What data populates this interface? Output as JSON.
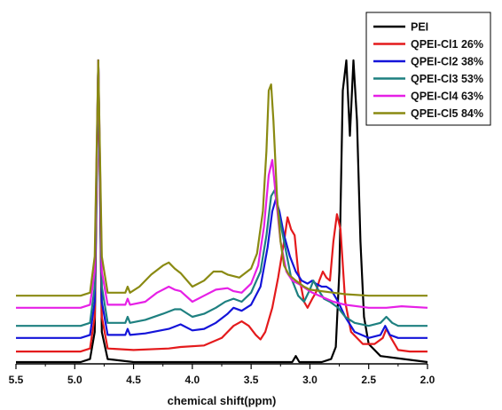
{
  "chart_data": {
    "type": "line",
    "title": "",
    "xlabel": "chemical shift(ppm)",
    "ylabel": "",
    "xlim": [
      5.5,
      2.0
    ],
    "x_reversed": true,
    "ylim": [
      0,
      1
    ],
    "x_ticks": [
      5.5,
      5.0,
      4.5,
      4.0,
      3.5,
      3.0,
      2.5,
      2.0
    ],
    "x_tick_labels": [
      "5.5",
      "5.0",
      "4.5",
      "4.0",
      "3.5",
      "3.0",
      "2.5",
      "2.0"
    ],
    "grid": false,
    "legend_position": "top-right",
    "legend": [
      "PEI",
      "QPEI-Cl1 26%",
      "QPEI-Cl2 38%",
      "QPEI-Cl3 53%",
      "QPEI-Cl4 63%",
      "QPEI-Cl5 84%"
    ],
    "series": [
      {
        "name": "PEI",
        "color": "#000000",
        "points": [
          [
            5.5,
            0.0
          ],
          [
            4.95,
            0.0
          ],
          [
            4.87,
            0.01
          ],
          [
            4.83,
            0.1
          ],
          [
            4.8,
            1.0
          ],
          [
            4.77,
            0.1
          ],
          [
            4.72,
            0.01
          ],
          [
            4.5,
            0.0
          ],
          [
            3.6,
            0.0
          ],
          [
            3.15,
            0.0
          ],
          [
            3.12,
            0.02
          ],
          [
            3.09,
            0.0
          ],
          [
            2.9,
            0.0
          ],
          [
            2.82,
            0.01
          ],
          [
            2.78,
            0.05
          ],
          [
            2.75,
            0.3
          ],
          [
            2.72,
            0.9
          ],
          [
            2.69,
            1.0
          ],
          [
            2.66,
            0.75
          ],
          [
            2.63,
            1.0
          ],
          [
            2.6,
            0.8
          ],
          [
            2.57,
            0.4
          ],
          [
            2.54,
            0.15
          ],
          [
            2.5,
            0.06
          ],
          [
            2.4,
            0.02
          ],
          [
            2.2,
            0.01
          ],
          [
            2.0,
            0.0
          ]
        ]
      },
      {
        "name": "QPEI-Cl1 26%",
        "color": "#e41a1c",
        "points": [
          [
            5.5,
            0.035
          ],
          [
            4.95,
            0.035
          ],
          [
            4.87,
            0.045
          ],
          [
            4.83,
            0.15
          ],
          [
            4.8,
            1.0
          ],
          [
            4.77,
            0.15
          ],
          [
            4.72,
            0.045
          ],
          [
            4.5,
            0.04
          ],
          [
            4.2,
            0.045
          ],
          [
            4.1,
            0.05
          ],
          [
            3.9,
            0.055
          ],
          [
            3.75,
            0.08
          ],
          [
            3.65,
            0.12
          ],
          [
            3.58,
            0.135
          ],
          [
            3.52,
            0.12
          ],
          [
            3.46,
            0.09
          ],
          [
            3.42,
            0.075
          ],
          [
            3.38,
            0.1
          ],
          [
            3.32,
            0.18
          ],
          [
            3.27,
            0.28
          ],
          [
            3.22,
            0.4
          ],
          [
            3.19,
            0.48
          ],
          [
            3.16,
            0.44
          ],
          [
            3.13,
            0.42
          ],
          [
            3.1,
            0.3
          ],
          [
            3.05,
            0.2
          ],
          [
            3.02,
            0.18
          ],
          [
            2.98,
            0.21
          ],
          [
            2.95,
            0.23
          ],
          [
            2.92,
            0.27
          ],
          [
            2.89,
            0.3
          ],
          [
            2.86,
            0.28
          ],
          [
            2.83,
            0.27
          ],
          [
            2.8,
            0.4
          ],
          [
            2.77,
            0.49
          ],
          [
            2.74,
            0.44
          ],
          [
            2.7,
            0.2
          ],
          [
            2.65,
            0.1
          ],
          [
            2.55,
            0.06
          ],
          [
            2.45,
            0.06
          ],
          [
            2.38,
            0.08
          ],
          [
            2.35,
            0.11
          ],
          [
            2.31,
            0.08
          ],
          [
            2.25,
            0.04
          ],
          [
            2.15,
            0.035
          ],
          [
            2.0,
            0.035
          ]
        ]
      },
      {
        "name": "QPEI-Cl2 38%",
        "color": "#1414d9",
        "points": [
          [
            5.5,
            0.08
          ],
          [
            4.95,
            0.08
          ],
          [
            4.87,
            0.09
          ],
          [
            4.83,
            0.2
          ],
          [
            4.8,
            1.0
          ],
          [
            4.77,
            0.2
          ],
          [
            4.72,
            0.09
          ],
          [
            4.57,
            0.09
          ],
          [
            4.55,
            0.11
          ],
          [
            4.53,
            0.09
          ],
          [
            4.4,
            0.095
          ],
          [
            4.2,
            0.11
          ],
          [
            4.1,
            0.125
          ],
          [
            4.0,
            0.105
          ],
          [
            3.9,
            0.11
          ],
          [
            3.8,
            0.13
          ],
          [
            3.7,
            0.16
          ],
          [
            3.65,
            0.18
          ],
          [
            3.58,
            0.17
          ],
          [
            3.5,
            0.19
          ],
          [
            3.42,
            0.25
          ],
          [
            3.36,
            0.38
          ],
          [
            3.32,
            0.5
          ],
          [
            3.29,
            0.54
          ],
          [
            3.26,
            0.5
          ],
          [
            3.22,
            0.42
          ],
          [
            3.17,
            0.35
          ],
          [
            3.12,
            0.3
          ],
          [
            3.07,
            0.27
          ],
          [
            3.02,
            0.26
          ],
          [
            2.98,
            0.27
          ],
          [
            2.95,
            0.26
          ],
          [
            2.9,
            0.25
          ],
          [
            2.86,
            0.25
          ],
          [
            2.82,
            0.24
          ],
          [
            2.76,
            0.2
          ],
          [
            2.7,
            0.15
          ],
          [
            2.62,
            0.1
          ],
          [
            2.5,
            0.08
          ],
          [
            2.4,
            0.09
          ],
          [
            2.36,
            0.12
          ],
          [
            2.32,
            0.09
          ],
          [
            2.25,
            0.08
          ],
          [
            2.0,
            0.08
          ]
        ]
      },
      {
        "name": "QPEI-Cl3 53%",
        "color": "#1e8080",
        "points": [
          [
            5.5,
            0.12
          ],
          [
            4.95,
            0.12
          ],
          [
            4.87,
            0.13
          ],
          [
            4.83,
            0.25
          ],
          [
            4.8,
            1.0
          ],
          [
            4.77,
            0.25
          ],
          [
            4.72,
            0.13
          ],
          [
            4.57,
            0.13
          ],
          [
            4.55,
            0.15
          ],
          [
            4.53,
            0.13
          ],
          [
            4.4,
            0.14
          ],
          [
            4.25,
            0.16
          ],
          [
            4.15,
            0.175
          ],
          [
            4.1,
            0.175
          ],
          [
            4.0,
            0.15
          ],
          [
            3.9,
            0.16
          ],
          [
            3.8,
            0.18
          ],
          [
            3.72,
            0.2
          ],
          [
            3.65,
            0.21
          ],
          [
            3.58,
            0.2
          ],
          [
            3.5,
            0.23
          ],
          [
            3.42,
            0.3
          ],
          [
            3.37,
            0.42
          ],
          [
            3.33,
            0.55
          ],
          [
            3.3,
            0.57
          ],
          [
            3.27,
            0.5
          ],
          [
            3.22,
            0.4
          ],
          [
            3.16,
            0.28
          ],
          [
            3.1,
            0.22
          ],
          [
            3.05,
            0.2
          ],
          [
            3.0,
            0.24
          ],
          [
            2.97,
            0.27
          ],
          [
            2.93,
            0.24
          ],
          [
            2.88,
            0.21
          ],
          [
            2.83,
            0.2
          ],
          [
            2.76,
            0.18
          ],
          [
            2.7,
            0.15
          ],
          [
            2.62,
            0.13
          ],
          [
            2.5,
            0.12
          ],
          [
            2.4,
            0.13
          ],
          [
            2.35,
            0.15
          ],
          [
            2.3,
            0.13
          ],
          [
            2.25,
            0.12
          ],
          [
            2.0,
            0.12
          ]
        ]
      },
      {
        "name": "QPEI-Cl4 63%",
        "color": "#e620e6",
        "points": [
          [
            5.5,
            0.18
          ],
          [
            4.95,
            0.18
          ],
          [
            4.87,
            0.19
          ],
          [
            4.83,
            0.3
          ],
          [
            4.8,
            1.0
          ],
          [
            4.77,
            0.3
          ],
          [
            4.72,
            0.19
          ],
          [
            4.57,
            0.19
          ],
          [
            4.55,
            0.21
          ],
          [
            4.53,
            0.19
          ],
          [
            4.4,
            0.2
          ],
          [
            4.3,
            0.23
          ],
          [
            4.2,
            0.25
          ],
          [
            4.15,
            0.24
          ],
          [
            4.1,
            0.235
          ],
          [
            4.0,
            0.2
          ],
          [
            3.9,
            0.22
          ],
          [
            3.8,
            0.24
          ],
          [
            3.7,
            0.245
          ],
          [
            3.65,
            0.235
          ],
          [
            3.58,
            0.23
          ],
          [
            3.5,
            0.26
          ],
          [
            3.44,
            0.32
          ],
          [
            3.39,
            0.45
          ],
          [
            3.35,
            0.62
          ],
          [
            3.32,
            0.67
          ],
          [
            3.29,
            0.55
          ],
          [
            3.25,
            0.4
          ],
          [
            3.2,
            0.3
          ],
          [
            3.15,
            0.27
          ],
          [
            3.1,
            0.26
          ],
          [
            3.06,
            0.25
          ],
          [
            3.02,
            0.24
          ],
          [
            2.98,
            0.23
          ],
          [
            2.92,
            0.22
          ],
          [
            2.86,
            0.21
          ],
          [
            2.8,
            0.2
          ],
          [
            2.7,
            0.19
          ],
          [
            2.5,
            0.18
          ],
          [
            2.35,
            0.18
          ],
          [
            2.22,
            0.185
          ],
          [
            2.0,
            0.18
          ]
        ]
      },
      {
        "name": "QPEI-Cl5 84%",
        "color": "#8a8a12",
        "points": [
          [
            5.5,
            0.22
          ],
          [
            4.95,
            0.22
          ],
          [
            4.87,
            0.23
          ],
          [
            4.83,
            0.35
          ],
          [
            4.8,
            1.0
          ],
          [
            4.77,
            0.35
          ],
          [
            4.72,
            0.23
          ],
          [
            4.57,
            0.23
          ],
          [
            4.55,
            0.25
          ],
          [
            4.53,
            0.23
          ],
          [
            4.45,
            0.25
          ],
          [
            4.35,
            0.29
          ],
          [
            4.25,
            0.32
          ],
          [
            4.2,
            0.33
          ],
          [
            4.15,
            0.31
          ],
          [
            4.1,
            0.295
          ],
          [
            4.0,
            0.25
          ],
          [
            3.9,
            0.27
          ],
          [
            3.82,
            0.3
          ],
          [
            3.75,
            0.3
          ],
          [
            3.7,
            0.29
          ],
          [
            3.6,
            0.28
          ],
          [
            3.5,
            0.31
          ],
          [
            3.45,
            0.36
          ],
          [
            3.4,
            0.5
          ],
          [
            3.37,
            0.7
          ],
          [
            3.35,
            0.9
          ],
          [
            3.33,
            0.92
          ],
          [
            3.31,
            0.8
          ],
          [
            3.28,
            0.55
          ],
          [
            3.25,
            0.4
          ],
          [
            3.22,
            0.32
          ],
          [
            3.18,
            0.29
          ],
          [
            3.12,
            0.27
          ],
          [
            3.05,
            0.25
          ],
          [
            3.0,
            0.24
          ],
          [
            2.9,
            0.235
          ],
          [
            2.8,
            0.23
          ],
          [
            2.7,
            0.225
          ],
          [
            2.5,
            0.22
          ],
          [
            2.3,
            0.22
          ],
          [
            2.0,
            0.22
          ]
        ]
      }
    ]
  }
}
